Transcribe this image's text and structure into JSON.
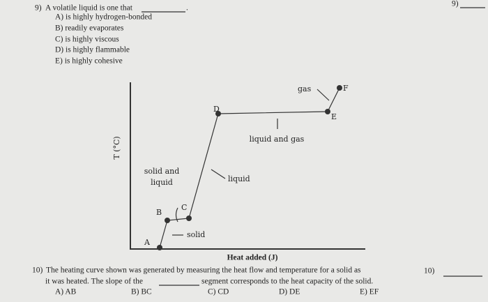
{
  "question_9": {
    "number": "9)",
    "stem": "A volatile liquid is one that",
    "stem_end": ".",
    "options": [
      "A) is highly hydrogen-bonded",
      "B) readily evaporates",
      "C) is highly viscous",
      "D) is highly flammable",
      "E) is highly cohesive"
    ],
    "answer_label": "9)"
  },
  "diagram": {
    "y_axis_label": "T (°C)",
    "x_axis_label": "Heat added (J)",
    "points": [
      "A",
      "B",
      "C",
      "D",
      "E",
      "F"
    ],
    "regions": {
      "solid": "solid",
      "solid_and_liquid": [
        "solid and",
        "liquid"
      ],
      "liquid": "liquid",
      "liquid_and_gas": "liquid and gas",
      "gas": "gas"
    }
  },
  "question_10": {
    "number": "10)",
    "stem_line_1": "The heating curve shown was generated by measuring the heat flow and temperature for a solid as",
    "stem_line_2_a": "it was heated. The slope of the",
    "stem_line_2_b": "segment corresponds to the heat capacity of the solid.",
    "options": [
      "A) AB",
      "B) BC",
      "C) CD",
      "D) DE",
      "E) EF"
    ],
    "answer_label": "10)"
  }
}
